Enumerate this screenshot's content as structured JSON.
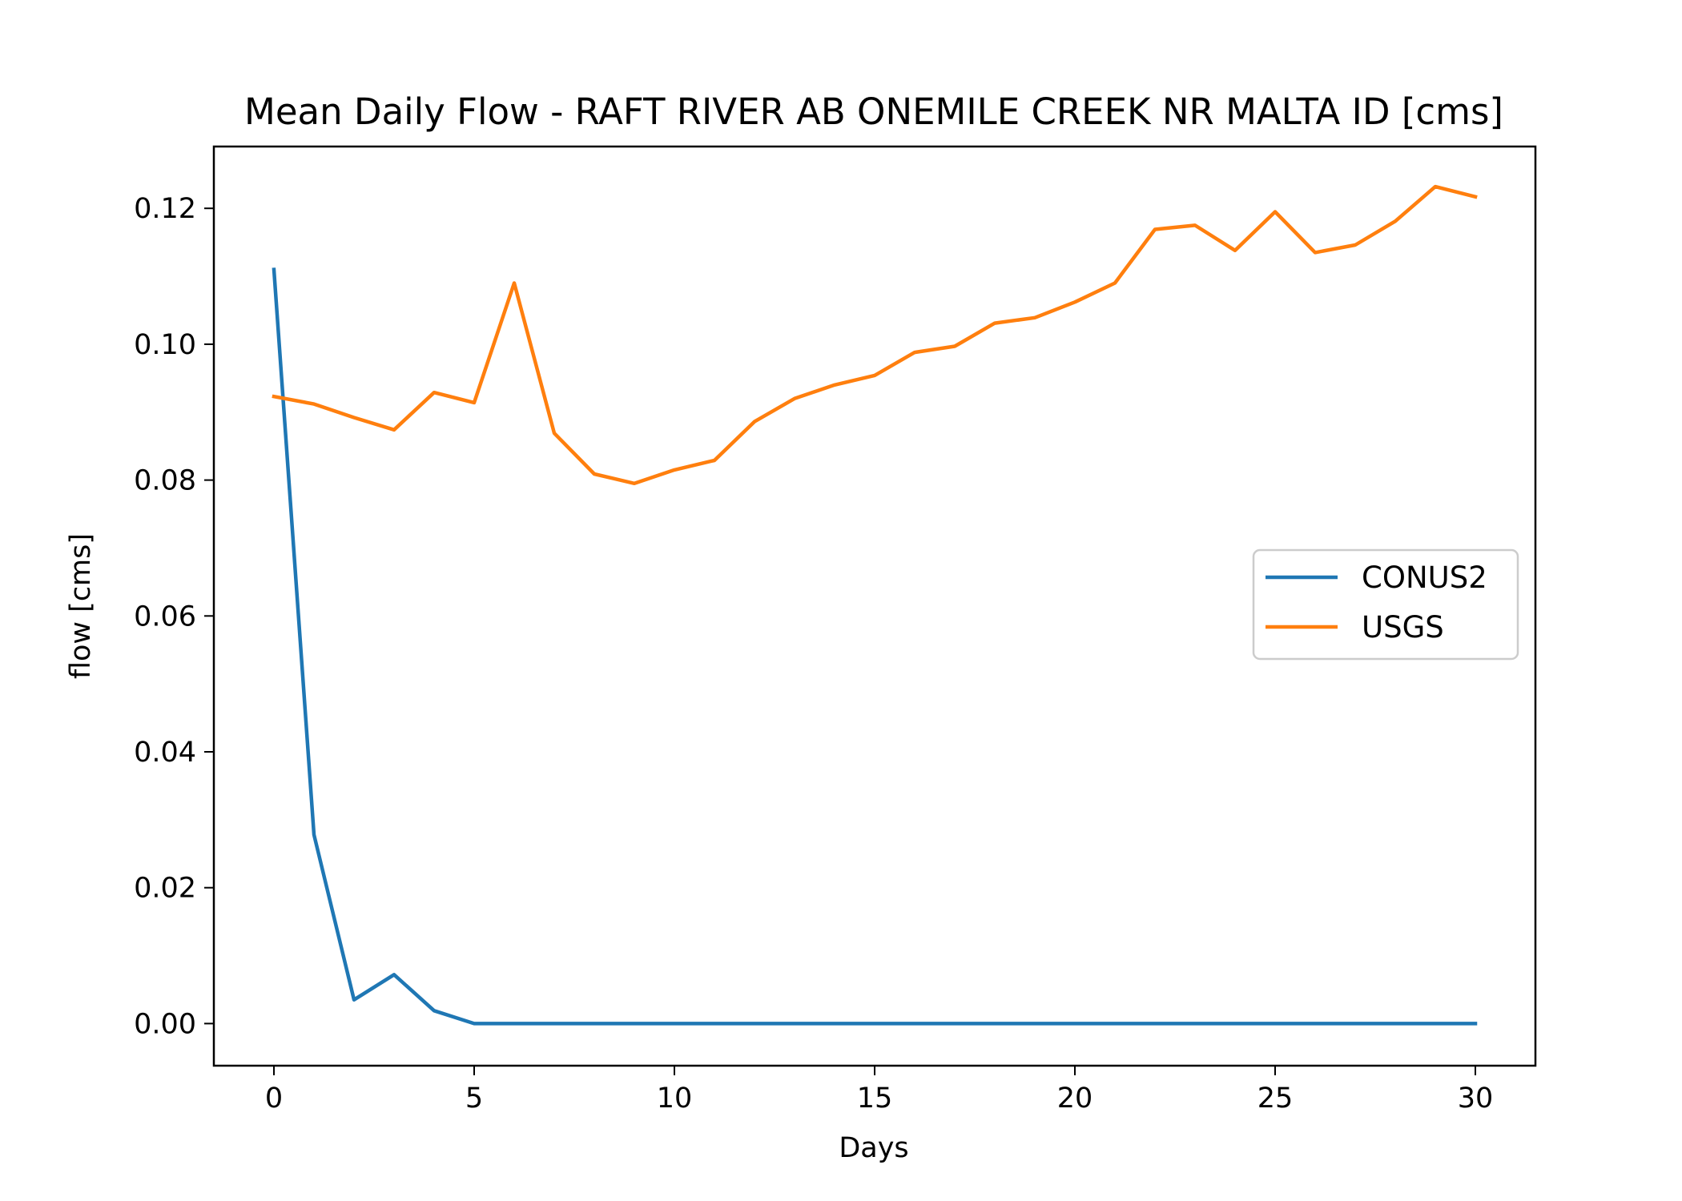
{
  "chart_data": {
    "type": "line",
    "title": "Mean Daily Flow - RAFT RIVER AB ONEMILE CREEK NR MALTA ID [cms]",
    "xlabel": "Days",
    "ylabel": "flow [cms]",
    "xlim": [
      -1.5,
      31.5
    ],
    "ylim": [
      -0.0062,
      0.1291
    ],
    "xticks": [
      0,
      5,
      10,
      15,
      20,
      25,
      30
    ],
    "xtick_labels": [
      "0",
      "5",
      "10",
      "15",
      "20",
      "25",
      "30"
    ],
    "yticks": [
      0.0,
      0.02,
      0.04,
      0.06,
      0.08,
      0.1,
      0.12
    ],
    "ytick_labels": [
      "0.00",
      "0.02",
      "0.04",
      "0.06",
      "0.08",
      "0.10",
      "0.12"
    ],
    "grid": false,
    "legend_position": "center-right",
    "x": [
      0,
      1,
      2,
      3,
      4,
      5,
      6,
      7,
      8,
      9,
      10,
      11,
      12,
      13,
      14,
      15,
      16,
      17,
      18,
      19,
      20,
      21,
      22,
      23,
      24,
      25,
      26,
      27,
      28,
      29,
      30
    ],
    "series": [
      {
        "name": "CONUS2",
        "color": "#1f77b4",
        "values": [
          0.111,
          0.0278,
          0.0035,
          0.0072,
          0.0019,
          0.0,
          0.0,
          0.0,
          0.0,
          0.0,
          0.0,
          0.0,
          0.0,
          0.0,
          0.0,
          0.0,
          0.0,
          0.0,
          0.0,
          0.0,
          0.0,
          0.0,
          0.0,
          0.0,
          0.0,
          0.0,
          0.0,
          0.0,
          0.0,
          0.0,
          0.0
        ]
      },
      {
        "name": "USGS",
        "color": "#ff7f0e",
        "values": [
          0.0923,
          0.0912,
          0.0892,
          0.0874,
          0.0929,
          0.0914,
          0.109,
          0.0869,
          0.0809,
          0.0795,
          0.0815,
          0.0829,
          0.0886,
          0.092,
          0.094,
          0.0954,
          0.0988,
          0.0997,
          0.1031,
          0.1039,
          0.1062,
          0.109,
          0.1169,
          0.1175,
          0.1138,
          0.1195,
          0.1135,
          0.1146,
          0.1181,
          0.1232,
          0.1217
        ]
      }
    ]
  }
}
